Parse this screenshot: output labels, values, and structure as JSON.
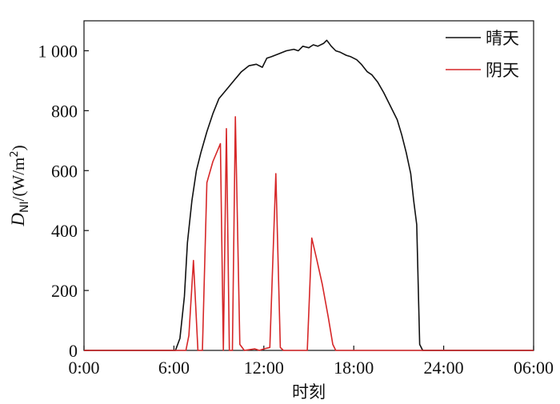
{
  "chart_data": {
    "type": "line",
    "xlabel": "时刻",
    "ylabel": {
      "main": "D",
      "sub": "NI",
      "unit_pre": "/(W/m",
      "sup": "2",
      "unit_post": ")"
    },
    "x_ticks": [
      "0:00",
      "6:00",
      "12:00",
      "18:00",
      "24:00",
      "06:00"
    ],
    "y_ticks": [
      "0",
      "200",
      "400",
      "600",
      "800",
      "1 000"
    ],
    "x_range_hours": [
      0,
      30
    ],
    "ylim": [
      0,
      1100
    ],
    "grid": false,
    "legend_position": "top-right",
    "series": [
      {
        "name": "晴天",
        "color": "#111111",
        "points": [
          [
            0,
            0
          ],
          [
            6.1,
            0
          ],
          [
            6.4,
            40
          ],
          [
            6.7,
            180
          ],
          [
            6.9,
            360
          ],
          [
            7.2,
            500
          ],
          [
            7.5,
            600
          ],
          [
            7.8,
            660
          ],
          [
            8.2,
            730
          ],
          [
            8.6,
            790
          ],
          [
            9.0,
            840
          ],
          [
            9.5,
            870
          ],
          [
            10.0,
            900
          ],
          [
            10.5,
            930
          ],
          [
            11.0,
            950
          ],
          [
            11.5,
            955
          ],
          [
            11.9,
            945
          ],
          [
            12.2,
            975
          ],
          [
            12.5,
            980
          ],
          [
            13.0,
            990
          ],
          [
            13.5,
            1000
          ],
          [
            14.0,
            1005
          ],
          [
            14.3,
            1000
          ],
          [
            14.6,
            1015
          ],
          [
            15.0,
            1010
          ],
          [
            15.3,
            1020
          ],
          [
            15.6,
            1015
          ],
          [
            16.0,
            1025
          ],
          [
            16.2,
            1035
          ],
          [
            16.5,
            1015
          ],
          [
            16.8,
            1000
          ],
          [
            17.1,
            995
          ],
          [
            17.5,
            985
          ],
          [
            17.8,
            980
          ],
          [
            18.2,
            970
          ],
          [
            18.5,
            955
          ],
          [
            18.9,
            930
          ],
          [
            19.2,
            920
          ],
          [
            19.6,
            895
          ],
          [
            20.0,
            860
          ],
          [
            20.3,
            830
          ],
          [
            20.6,
            800
          ],
          [
            20.9,
            770
          ],
          [
            21.2,
            720
          ],
          [
            21.5,
            660
          ],
          [
            21.8,
            590
          ],
          [
            22.0,
            500
          ],
          [
            22.2,
            420
          ],
          [
            22.4,
            20
          ],
          [
            22.6,
            0
          ],
          [
            30,
            0
          ]
        ]
      },
      {
        "name": "阴天",
        "color": "#d62728",
        "points": [
          [
            0,
            0
          ],
          [
            6.8,
            0
          ],
          [
            7.0,
            50
          ],
          [
            7.3,
            300
          ],
          [
            7.6,
            0
          ],
          [
            7.9,
            0
          ],
          [
            8.2,
            560
          ],
          [
            8.6,
            630
          ],
          [
            9.1,
            690
          ],
          [
            9.3,
            0
          ],
          [
            9.5,
            740
          ],
          [
            9.7,
            0
          ],
          [
            9.9,
            0
          ],
          [
            10.1,
            780
          ],
          [
            10.4,
            20
          ],
          [
            10.7,
            0
          ],
          [
            11.4,
            5
          ],
          [
            11.7,
            0
          ],
          [
            12.0,
            5
          ],
          [
            12.4,
            10
          ],
          [
            12.8,
            590
          ],
          [
            13.1,
            10
          ],
          [
            13.3,
            0
          ],
          [
            14.9,
            0
          ],
          [
            15.2,
            375
          ],
          [
            15.5,
            310
          ],
          [
            15.9,
            220
          ],
          [
            16.3,
            110
          ],
          [
            16.6,
            20
          ],
          [
            16.8,
            0
          ],
          [
            30,
            0
          ]
        ]
      }
    ]
  }
}
